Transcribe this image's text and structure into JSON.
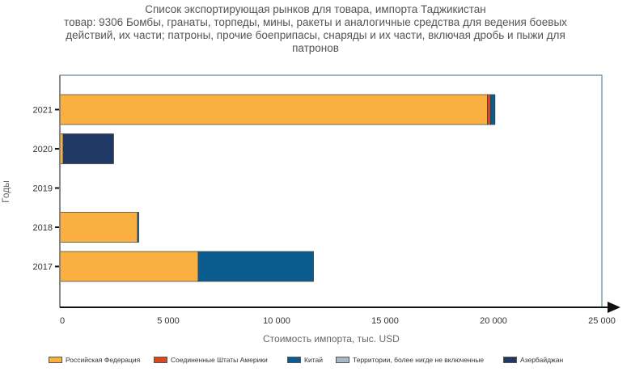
{
  "chart_data": {
    "type": "bar",
    "orientation": "horizontal",
    "stacked": true,
    "title_lines": [
      "Список экспортирующая рынков для товара, импорта Таджикистан",
      "товар: 9306 Бомбы, гранаты, торпеды, мины, ракеты и аналогичные средства для ведения боевых",
      "действий, их части; патроны, прочие боеприпасы, снаряды и их части, включая дробь и пыжи для",
      "патронов"
    ],
    "xlabel": "Стоимость импорта, тыс. USD",
    "ylabel": "Годы",
    "xlim": [
      0,
      25000
    ],
    "xticks": [
      0,
      5000,
      10000,
      15000,
      20000,
      25000
    ],
    "xtick_labels": [
      "0",
      "5 000",
      "10 000",
      "15 000",
      "20 000",
      "25 000"
    ],
    "categories": [
      "2021",
      "2020",
      "2019",
      "2018",
      "2017"
    ],
    "series": [
      {
        "name": "Российская Федерация",
        "color": "#F9B040",
        "values": [
          19720,
          150,
          0,
          3580,
          6380
        ]
      },
      {
        "name": "Соединенные Штаты Америки",
        "color": "#D9481E",
        "values": [
          150,
          0,
          0,
          0,
          0
        ]
      },
      {
        "name": "Китай",
        "color": "#0B5C8E",
        "values": [
          200,
          0,
          0,
          60,
          5320
        ]
      },
      {
        "name": "Территории, более нигде не включенные",
        "color": "#A8B7C7",
        "values": [
          0,
          0,
          0,
          0,
          0
        ]
      },
      {
        "name": "Азербайджан",
        "color": "#1F3864",
        "values": [
          0,
          2330,
          0,
          0,
          0
        ]
      }
    ],
    "legend_position": "bottom",
    "grid": false
  }
}
